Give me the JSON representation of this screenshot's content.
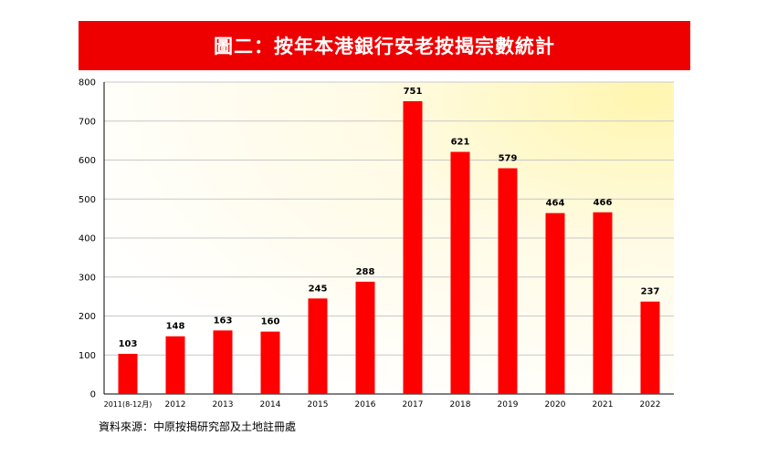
{
  "title": "圖二：按年本港銀行安老按揭宗數統計",
  "source": "資料來源：中原按揭研究部及土地註冊處",
  "colors": {
    "bar": "#ff0000",
    "banner": "#ee0000"
  },
  "chart_data": {
    "type": "bar",
    "title": "圖二：按年本港銀行安老按揭宗數統計",
    "categories": [
      "2011(8-12月)",
      "2012",
      "2013",
      "2014",
      "2015",
      "2016",
      "2017",
      "2018",
      "2019",
      "2020",
      "2021",
      "2022"
    ],
    "values": [
      103,
      148,
      163,
      160,
      245,
      288,
      751,
      621,
      579,
      464,
      466,
      237
    ],
    "y_ticks": [
      0,
      100,
      200,
      300,
      400,
      500,
      600,
      700,
      800
    ],
    "ylim": [
      0,
      800
    ],
    "xlabel": "",
    "ylabel": "",
    "grid": true
  }
}
